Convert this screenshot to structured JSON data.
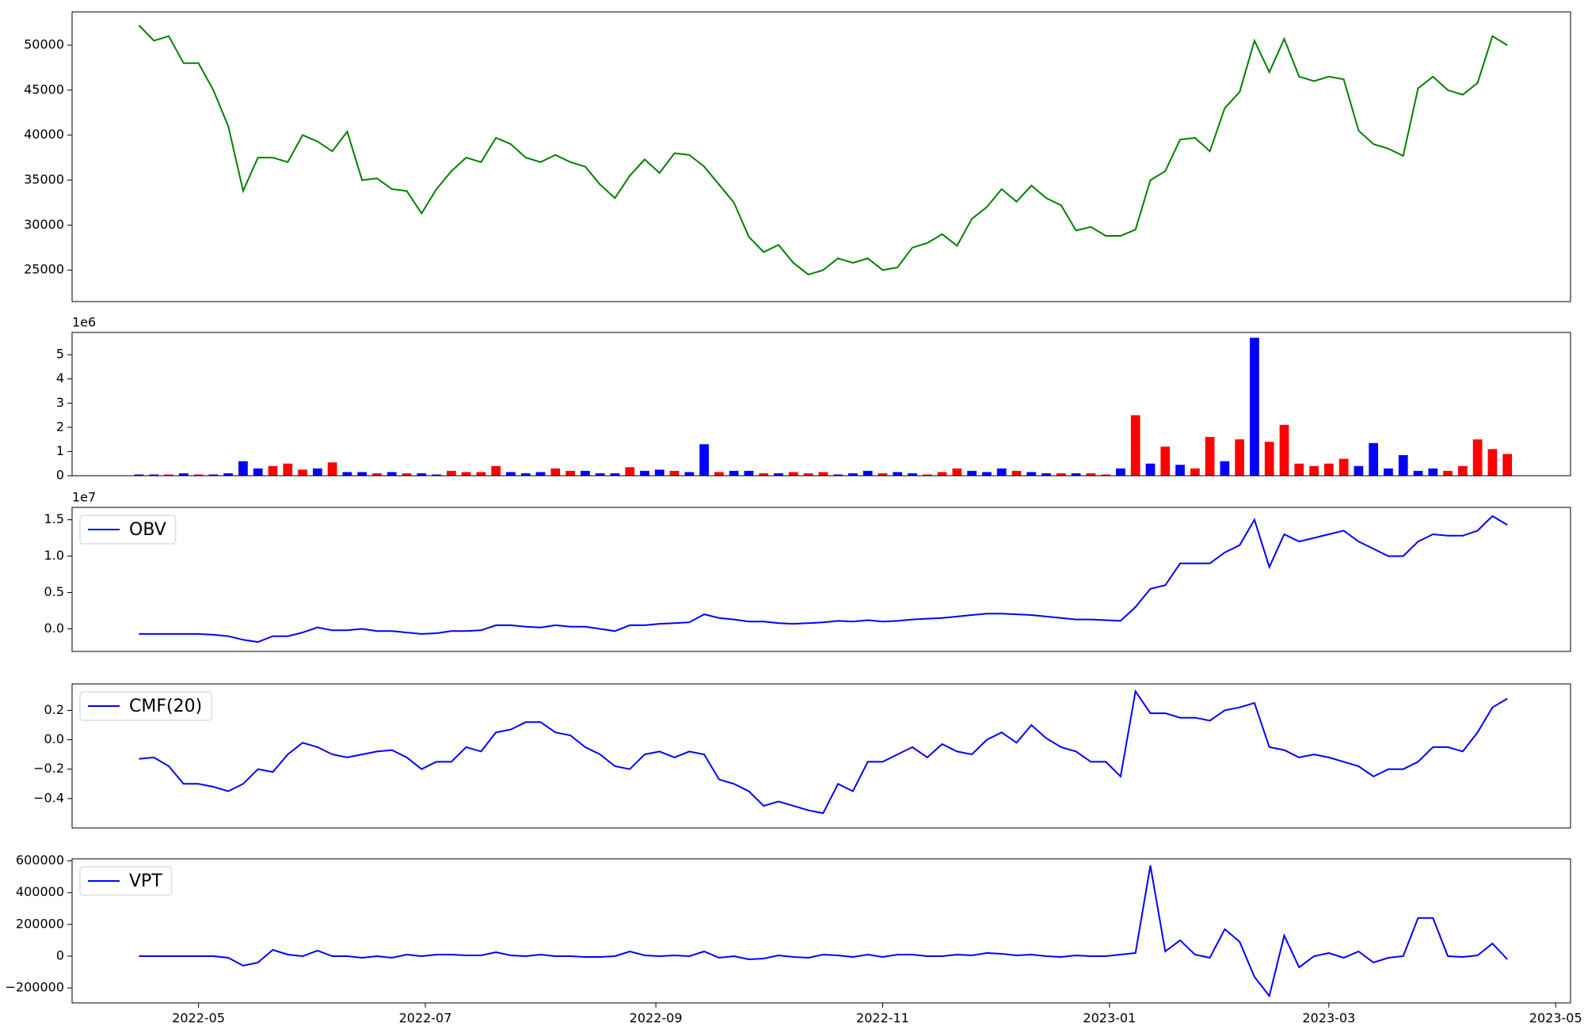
{
  "chart_data": [
    {
      "type": "line",
      "color": "#008000",
      "x": [
        0,
        4,
        8,
        12,
        16,
        20,
        24,
        28,
        32,
        36,
        40,
        44,
        48,
        52,
        56,
        60,
        64,
        68,
        72,
        76,
        80,
        84,
        88,
        92,
        96,
        100,
        104,
        108,
        112,
        116,
        120,
        124,
        128,
        132,
        136,
        140,
        144,
        148,
        152,
        156,
        160,
        164,
        168,
        172,
        176,
        180,
        184,
        188,
        192,
        196,
        200,
        204,
        208,
        212,
        216,
        220,
        224,
        228,
        232,
        236,
        240,
        244,
        248,
        252,
        256,
        260,
        264,
        268,
        272,
        276,
        280,
        284,
        288,
        292,
        296,
        300,
        304,
        308,
        312,
        316,
        320,
        324,
        328,
        332,
        336,
        340,
        344,
        348,
        352,
        356,
        360,
        364,
        368
      ],
      "values": [
        52200,
        50500,
        51000,
        48000,
        48000,
        45000,
        41000,
        33800,
        37500,
        37500,
        37000,
        40000,
        39300,
        38200,
        40400,
        35000,
        35200,
        34000,
        33800,
        31300,
        34000,
        36000,
        37500,
        37000,
        39700,
        39000,
        37500,
        37000,
        37800,
        37000,
        36500,
        34500,
        33000,
        35500,
        37300,
        35800,
        38000,
        37800,
        36500,
        34500,
        32500,
        28700,
        27000,
        27800,
        25800,
        24500,
        25000,
        26300,
        25800,
        26300,
        25000,
        25300,
        27500,
        28000,
        29000,
        27700,
        30700,
        32000,
        34000,
        32600,
        34400,
        33000,
        32200,
        29400,
        29800,
        28800,
        28800,
        29500,
        35000,
        36000,
        39500,
        39700,
        38200,
        43000,
        44800,
        50500,
        47000,
        50700,
        46500,
        46000,
        46500,
        46200,
        40500,
        39000,
        38500,
        37700,
        45200,
        46500,
        45000,
        44500,
        45800,
        51000,
        50000
      ],
      "xlim": [
        -18,
        385
      ],
      "ylim": [
        21500,
        53700
      ],
      "yticks": [
        25000,
        30000,
        35000,
        40000,
        45000,
        50000
      ]
    },
    {
      "type": "bar",
      "y_offset_label": "1e6",
      "x": [
        0,
        4,
        8,
        12,
        16,
        20,
        24,
        28,
        32,
        36,
        40,
        44,
        48,
        52,
        56,
        60,
        64,
        68,
        72,
        76,
        80,
        84,
        88,
        92,
        96,
        100,
        104,
        108,
        112,
        116,
        120,
        124,
        128,
        132,
        136,
        140,
        144,
        148,
        152,
        156,
        160,
        164,
        168,
        172,
        176,
        180,
        184,
        188,
        192,
        196,
        200,
        204,
        208,
        212,
        216,
        220,
        224,
        228,
        232,
        236,
        240,
        244,
        248,
        252,
        256,
        260,
        264,
        268,
        272,
        276,
        280,
        284,
        288,
        292,
        296,
        300,
        304,
        308,
        312,
        316,
        320,
        324,
        328,
        332,
        336,
        340,
        344,
        348,
        352,
        356,
        360,
        364,
        368
      ],
      "values": [
        50000,
        50000,
        50000,
        100000,
        50000,
        50000,
        100000,
        600000,
        300000,
        400000,
        500000,
        250000,
        300000,
        550000,
        150000,
        150000,
        100000,
        150000,
        100000,
        100000,
        50000,
        200000,
        150000,
        150000,
        400000,
        150000,
        100000,
        150000,
        300000,
        200000,
        200000,
        100000,
        100000,
        350000,
        200000,
        250000,
        200000,
        150000,
        1300000,
        150000,
        200000,
        200000,
        100000,
        100000,
        150000,
        100000,
        150000,
        50000,
        100000,
        200000,
        100000,
        150000,
        100000,
        50000,
        150000,
        300000,
        200000,
        150000,
        300000,
        200000,
        150000,
        100000,
        100000,
        100000,
        100000,
        50000,
        300000,
        2500000,
        500000,
        1200000,
        450000,
        300000,
        1600000,
        600000,
        1500000,
        5700000,
        1400000,
        2100000,
        500000,
        400000,
        500000,
        700000,
        400000,
        1350000,
        300000,
        850000,
        200000,
        300000,
        200000,
        400000,
        1500000,
        1100000,
        900000
      ],
      "colors": [
        "blue",
        "blue",
        "red",
        "blue",
        "red",
        "blue",
        "blue",
        "blue",
        "blue",
        "red",
        "red",
        "red",
        "blue",
        "red",
        "blue",
        "blue",
        "red",
        "blue",
        "red",
        "blue",
        "blue",
        "red",
        "red",
        "red",
        "red",
        "blue",
        "blue",
        "blue",
        "red",
        "red",
        "blue",
        "blue",
        "blue",
        "red",
        "blue",
        "blue",
        "red",
        "blue",
        "blue",
        "red",
        "blue",
        "blue",
        "red",
        "blue",
        "red",
        "red",
        "red",
        "blue",
        "blue",
        "blue",
        "red",
        "blue",
        "blue",
        "red",
        "red",
        "red",
        "blue",
        "blue",
        "blue",
        "red",
        "blue",
        "blue",
        "red",
        "blue",
        "red",
        "red",
        "blue",
        "red",
        "blue",
        "red",
        "blue",
        "red",
        "red",
        "blue",
        "red",
        "blue",
        "red",
        "red",
        "red",
        "red",
        "red",
        "red",
        "blue",
        "blue",
        "blue",
        "blue",
        "blue",
        "blue",
        "red",
        "red",
        "red",
        "red",
        "red"
      ],
      "xlim": [
        -18,
        385
      ],
      "ylim": [
        0,
        5920000
      ],
      "yticks": [
        {
          "value": 0,
          "label": "0"
        },
        {
          "value": 1000000,
          "label": "1"
        },
        {
          "value": 2000000,
          "label": "2"
        },
        {
          "value": 3000000,
          "label": "3"
        },
        {
          "value": 4000000,
          "label": "4"
        },
        {
          "value": 5000000,
          "label": "5"
        }
      ]
    },
    {
      "type": "line",
      "y_offset_label": "1e7",
      "legend": "upper left",
      "x": [
        0,
        4,
        8,
        12,
        16,
        20,
        24,
        28,
        32,
        36,
        40,
        44,
        48,
        52,
        56,
        60,
        64,
        68,
        72,
        76,
        80,
        84,
        88,
        92,
        96,
        100,
        104,
        108,
        112,
        116,
        120,
        124,
        128,
        132,
        136,
        140,
        144,
        148,
        152,
        156,
        160,
        164,
        168,
        172,
        176,
        180,
        184,
        188,
        192,
        196,
        200,
        204,
        208,
        212,
        216,
        220,
        224,
        228,
        232,
        236,
        240,
        244,
        248,
        252,
        256,
        260,
        264,
        268,
        272,
        276,
        280,
        284,
        288,
        292,
        296,
        300,
        304,
        308,
        312,
        316,
        320,
        324,
        328,
        332,
        336,
        340,
        344,
        348,
        352,
        356,
        360,
        364,
        368
      ],
      "series": [
        {
          "name": "OBV",
          "color": "#0000ff",
          "values": [
            -700000,
            -700000,
            -700000,
            -700000,
            -700000,
            -800000,
            -1000000,
            -1500000,
            -1800000,
            -1000000,
            -1000000,
            -500000,
            200000,
            -200000,
            -200000,
            0,
            -300000,
            -300000,
            -500000,
            -700000,
            -600000,
            -300000,
            -300000,
            -200000,
            500000,
            500000,
            300000,
            200000,
            500000,
            300000,
            300000,
            0,
            -300000,
            500000,
            500000,
            700000,
            800000,
            900000,
            2000000,
            1500000,
            1300000,
            1000000,
            1000000,
            800000,
            700000,
            800000,
            900000,
            1100000,
            1000000,
            1200000,
            1000000,
            1100000,
            1300000,
            1400000,
            1500000,
            1700000,
            1900000,
            2100000,
            2100000,
            2000000,
            1900000,
            1700000,
            1500000,
            1300000,
            1300000,
            1200000,
            1100000,
            3000000,
            5500000,
            6000000,
            9000000,
            9000000,
            9000000,
            10500000,
            11500000,
            15000000,
            8500000,
            13000000,
            12000000,
            12500000,
            13000000,
            13500000,
            12000000,
            11000000,
            10000000,
            10000000,
            12000000,
            13000000,
            12800000,
            12800000,
            13500000,
            15500000,
            14300000
          ]
        }
      ],
      "xlim": [
        -18,
        385
      ],
      "ylim": [
        -3100000,
        16700000
      ],
      "yticks": [
        {
          "value": 0,
          "label": "0.0"
        },
        {
          "value": 5000000,
          "label": "0.5"
        },
        {
          "value": 10000000,
          "label": "1.0"
        },
        {
          "value": 15000000,
          "label": "1.5"
        }
      ]
    },
    {
      "type": "line",
      "legend": "upper left",
      "x": [
        0,
        4,
        8,
        12,
        16,
        20,
        24,
        28,
        32,
        36,
        40,
        44,
        48,
        52,
        56,
        60,
        64,
        68,
        72,
        76,
        80,
        84,
        88,
        92,
        96,
        100,
        104,
        108,
        112,
        116,
        120,
        124,
        128,
        132,
        136,
        140,
        144,
        148,
        152,
        156,
        160,
        164,
        168,
        172,
        176,
        180,
        184,
        188,
        192,
        196,
        200,
        204,
        208,
        212,
        216,
        220,
        224,
        228,
        232,
        236,
        240,
        244,
        248,
        252,
        256,
        260,
        264,
        268,
        272,
        276,
        280,
        284,
        288,
        292,
        296,
        300,
        304,
        308,
        312,
        316,
        320,
        324,
        328,
        332,
        336,
        340,
        344,
        348,
        352,
        356,
        360,
        364,
        368
      ],
      "series": [
        {
          "name": "CMF(20)",
          "color": "#0000ff",
          "values": [
            -0.13,
            -0.12,
            -0.18,
            -0.3,
            -0.3,
            -0.32,
            -0.35,
            -0.3,
            -0.2,
            -0.22,
            -0.1,
            -0.02,
            -0.05,
            -0.1,
            -0.12,
            -0.1,
            -0.08,
            -0.07,
            -0.12,
            -0.2,
            -0.15,
            -0.15,
            -0.05,
            -0.08,
            0.05,
            0.07,
            0.12,
            0.12,
            0.05,
            0.03,
            -0.05,
            -0.1,
            -0.18,
            -0.2,
            -0.1,
            -0.08,
            -0.12,
            -0.08,
            -0.1,
            -0.27,
            -0.3,
            -0.35,
            -0.45,
            -0.42,
            -0.45,
            -0.48,
            -0.5,
            -0.3,
            -0.35,
            -0.15,
            -0.15,
            -0.1,
            -0.05,
            -0.12,
            -0.03,
            -0.08,
            -0.1,
            0.0,
            0.05,
            -0.02,
            0.1,
            0.01,
            -0.05,
            -0.08,
            -0.15,
            -0.15,
            -0.25,
            0.33,
            0.18,
            0.18,
            0.15,
            0.15,
            0.13,
            0.2,
            0.22,
            0.25,
            -0.05,
            -0.07,
            -0.12,
            -0.1,
            -0.12,
            -0.15,
            -0.18,
            -0.25,
            -0.2,
            -0.2,
            -0.15,
            -0.05,
            -0.05,
            -0.08,
            0.05,
            0.22,
            0.28
          ]
        }
      ],
      "xlim": [
        -18,
        385
      ],
      "ylim": [
        -0.6,
        0.38
      ],
      "yticks": [
        {
          "value": -0.4,
          "label": "−0.4"
        },
        {
          "value": -0.2,
          "label": "−0.2"
        },
        {
          "value": 0,
          "label": "0.0"
        },
        0.2
      ]
    },
    {
      "type": "line",
      "legend": "upper left",
      "x": [
        0,
        4,
        8,
        12,
        16,
        20,
        24,
        28,
        32,
        36,
        40,
        44,
        48,
        52,
        56,
        60,
        64,
        68,
        72,
        76,
        80,
        84,
        88,
        92,
        96,
        100,
        104,
        108,
        112,
        116,
        120,
        124,
        128,
        132,
        136,
        140,
        144,
        148,
        152,
        156,
        160,
        164,
        168,
        172,
        176,
        180,
        184,
        188,
        192,
        196,
        200,
        204,
        208,
        212,
        216,
        220,
        224,
        228,
        232,
        236,
        240,
        244,
        248,
        252,
        256,
        260,
        264,
        268,
        272,
        276,
        280,
        284,
        288,
        292,
        296,
        300,
        304,
        308,
        312,
        316,
        320,
        324,
        328,
        332,
        336,
        340,
        344,
        348,
        352,
        356,
        360,
        364,
        368
      ],
      "series": [
        {
          "name": "VPT",
          "color": "#0000ff",
          "values": [
            0,
            0,
            0,
            0,
            0,
            0,
            -10000,
            -60000,
            -40000,
            40000,
            10000,
            0,
            35000,
            0,
            0,
            -10000,
            0,
            -10000,
            10000,
            0,
            10000,
            10000,
            5000,
            5000,
            25000,
            5000,
            0,
            10000,
            0,
            0,
            -5000,
            -5000,
            0,
            30000,
            5000,
            0,
            5000,
            0,
            30000,
            -10000,
            0,
            -20000,
            -15000,
            5000,
            -5000,
            -10000,
            10000,
            5000,
            -5000,
            10000,
            -5000,
            10000,
            10000,
            0,
            0,
            10000,
            5000,
            20000,
            15000,
            5000,
            10000,
            0,
            -5000,
            5000,
            0,
            0,
            10000,
            20000,
            570000,
            30000,
            100000,
            10000,
            -10000,
            170000,
            90000,
            -130000,
            -250000,
            130000,
            -70000,
            0,
            20000,
            -10000,
            30000,
            -40000,
            -10000,
            0,
            240000,
            240000,
            0,
            -5000,
            5000,
            80000,
            -20000
          ]
        }
      ],
      "xlim": [
        -18,
        385
      ],
      "ylim": [
        -294000,
        613000
      ],
      "yticks": [
        {
          "value": -200000,
          "label": "−200000"
        },
        0,
        200000,
        400000,
        600000
      ],
      "xticks": [
        {
          "value": 16,
          "label": "2022-05"
        },
        {
          "value": 77,
          "label": "2022-07"
        },
        {
          "value": 139,
          "label": "2022-09"
        },
        {
          "value": 200,
          "label": "2022-11"
        },
        {
          "value": 261,
          "label": "2023-01"
        },
        {
          "value": 320,
          "label": "2023-03"
        },
        {
          "value": 381,
          "label": "2023-05"
        }
      ]
    }
  ]
}
